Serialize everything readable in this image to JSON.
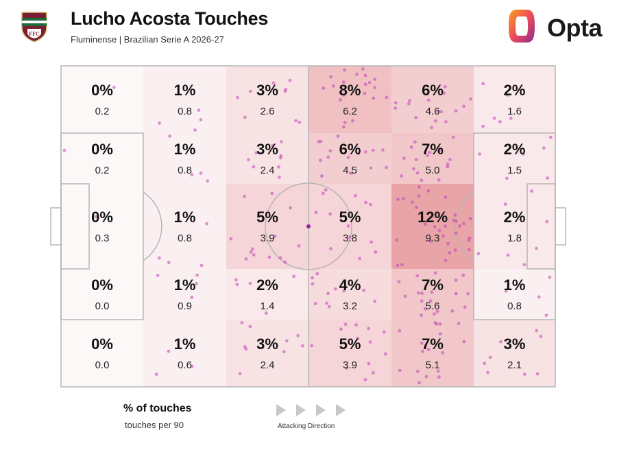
{
  "header": {
    "title": "Lucho Acosta Touches",
    "subtitle": "Fluminense | Brazilian Serie A 2026-27",
    "brand": "Opta"
  },
  "legend": {
    "primary": "% of touches",
    "secondary": "touches per 90",
    "direction": "Attacking Direction"
  },
  "colors": {
    "zone": "#e8a0a4",
    "dots": "#c040b8",
    "pitch_lines": "#b5b5b5",
    "opta_orange": "#f26a21",
    "opta_purple": "#8b2b8f"
  },
  "chart_data": {
    "type": "heatmap",
    "description_rows": "rows top to bottom, columns left to right in attacking direction",
    "columns": 6,
    "rows": 5,
    "cells": [
      [
        {
          "pct": "0%",
          "per90": "0.2"
        },
        {
          "pct": "1%",
          "per90": "0.8"
        },
        {
          "pct": "3%",
          "per90": "2.6"
        },
        {
          "pct": "8%",
          "per90": "6.2"
        },
        {
          "pct": "6%",
          "per90": "4.6"
        },
        {
          "pct": "2%",
          "per90": "1.6"
        }
      ],
      [
        {
          "pct": "0%",
          "per90": "0.2"
        },
        {
          "pct": "1%",
          "per90": "0.8"
        },
        {
          "pct": "3%",
          "per90": "2.4"
        },
        {
          "pct": "6%",
          "per90": "4.5"
        },
        {
          "pct": "7%",
          "per90": "5.0"
        },
        {
          "pct": "2%",
          "per90": "1.5"
        }
      ],
      [
        {
          "pct": "0%",
          "per90": "0.3"
        },
        {
          "pct": "1%",
          "per90": "0.8"
        },
        {
          "pct": "5%",
          "per90": "3.9"
        },
        {
          "pct": "5%",
          "per90": "3.8"
        },
        {
          "pct": "12%",
          "per90": "9.3"
        },
        {
          "pct": "2%",
          "per90": "1.8"
        }
      ],
      [
        {
          "pct": "0%",
          "per90": "0.0"
        },
        {
          "pct": "1%",
          "per90": "0.9"
        },
        {
          "pct": "2%",
          "per90": "1.4"
        },
        {
          "pct": "4%",
          "per90": "3.2"
        },
        {
          "pct": "7%",
          "per90": "5.6"
        },
        {
          "pct": "1%",
          "per90": "0.8"
        }
      ],
      [
        {
          "pct": "0%",
          "per90": "0.0"
        },
        {
          "pct": "1%",
          "per90": "0.6"
        },
        {
          "pct": "3%",
          "per90": "2.4"
        },
        {
          "pct": "5%",
          "per90": "3.9"
        },
        {
          "pct": "7%",
          "per90": "5.1"
        },
        {
          "pct": "3%",
          "per90": "2.1"
        }
      ]
    ]
  }
}
